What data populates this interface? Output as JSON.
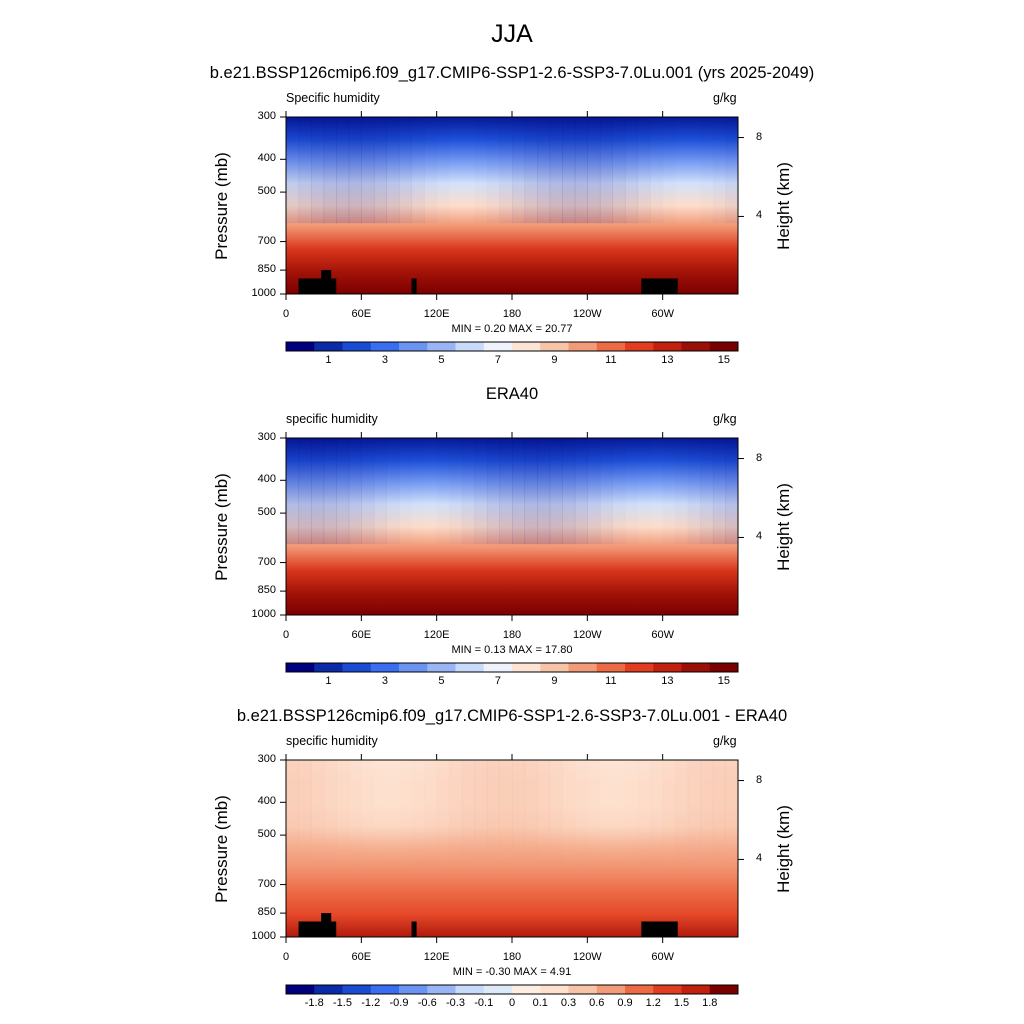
{
  "page": {
    "title": "JJA"
  },
  "chart_data": [
    {
      "type": "heatmap",
      "title": "b.e21.BSSP126cmip6.f09_g17.CMIP6-SSP1-2.6-SSP3-7.0Lu.001 (yrs 2025-2049)",
      "left_label": "Specific humidity",
      "units": "g/kg",
      "ylabel": "Pressure (mb)",
      "ylabel_right": "Height (km)",
      "x_ticks": [
        "0",
        "60E",
        "120E",
        "180",
        "120W",
        "60W"
      ],
      "x_range": [
        0,
        360
      ],
      "y_ticks": [
        "300",
        "400",
        "500",
        "700",
        "850",
        "1000"
      ],
      "y_range": [
        1000,
        300
      ],
      "y_scale": "log",
      "height_ticks": [
        "8",
        "4"
      ],
      "stats": "MIN =   0.20  MAX =  20.77",
      "min": 0.2,
      "max": 20.77,
      "colorbar_labels": [
        "1",
        "3",
        "5",
        "7",
        "9",
        "11",
        "13",
        "15"
      ],
      "colorbar_levels": [
        0.5,
        1,
        2,
        3,
        4,
        5,
        6,
        7,
        8,
        9,
        10,
        11,
        12,
        13,
        14,
        15
      ],
      "colorbar_colors": [
        "#00007f",
        "#0a2aa8",
        "#1a4bd4",
        "#3a6ef0",
        "#6a93f2",
        "#9ab5f5",
        "#c8dafa",
        "#eef2fb",
        "#fde5d6",
        "#f8c4a8",
        "#f29b79",
        "#ec6a44",
        "#e13d20",
        "#c2210f",
        "#9b1006",
        "#7a0000"
      ],
      "masked": true
    },
    {
      "type": "heatmap",
      "title": "ERA40",
      "left_label": "specific humidity",
      "units": "g/kg",
      "ylabel": "Pressure (mb)",
      "ylabel_right": "Height (km)",
      "x_ticks": [
        "0",
        "60E",
        "120E",
        "180",
        "120W",
        "60W"
      ],
      "x_range": [
        0,
        360
      ],
      "y_ticks": [
        "300",
        "400",
        "500",
        "700",
        "850",
        "1000"
      ],
      "y_range": [
        1000,
        300
      ],
      "y_scale": "log",
      "height_ticks": [
        "8",
        "4"
      ],
      "stats": "MIN =   0.13  MAX =  17.80",
      "min": 0.13,
      "max": 17.8,
      "colorbar_labels": [
        "1",
        "3",
        "5",
        "7",
        "9",
        "11",
        "13",
        "15"
      ],
      "colorbar_levels": [
        0.5,
        1,
        2,
        3,
        4,
        5,
        6,
        7,
        8,
        9,
        10,
        11,
        12,
        13,
        14,
        15
      ],
      "colorbar_colors": [
        "#00007f",
        "#0a2aa8",
        "#1a4bd4",
        "#3a6ef0",
        "#6a93f2",
        "#9ab5f5",
        "#c8dafa",
        "#eef2fb",
        "#fde5d6",
        "#f8c4a8",
        "#f29b79",
        "#ec6a44",
        "#e13d20",
        "#c2210f",
        "#9b1006",
        "#7a0000"
      ],
      "masked": false
    },
    {
      "type": "heatmap",
      "title": "b.e21.BSSP126cmip6.f09_g17.CMIP6-SSP1-2.6-SSP3-7.0Lu.001 - ERA40",
      "left_label": "specific humidity",
      "units": "g/kg",
      "ylabel": "Pressure (mb)",
      "ylabel_right": "Height (km)",
      "x_ticks": [
        "0",
        "60E",
        "120E",
        "180",
        "120W",
        "60W"
      ],
      "x_range": [
        0,
        360
      ],
      "y_ticks": [
        "300",
        "400",
        "500",
        "700",
        "850",
        "1000"
      ],
      "y_range": [
        1000,
        300
      ],
      "y_scale": "log",
      "height_ticks": [
        "8",
        "4"
      ],
      "stats": "MIN =  -0.30  MAX =   4.91",
      "min": -0.3,
      "max": 4.91,
      "colorbar_labels": [
        "-1.8",
        "-1.5",
        "-1.2",
        "-0.9",
        "-0.6",
        "-0.3",
        "-0.1",
        "0",
        "0.1",
        "0.3",
        "0.6",
        "0.9",
        "1.2",
        "1.5",
        "1.8"
      ],
      "colorbar_levels": [
        -1.8,
        -1.5,
        -1.2,
        -0.9,
        -0.6,
        -0.3,
        -0.1,
        0,
        0.1,
        0.3,
        0.6,
        0.9,
        1.2,
        1.5,
        1.8
      ],
      "colorbar_colors": [
        "#00007f",
        "#0a2aa8",
        "#1a4bd4",
        "#3a6ef0",
        "#6a93f2",
        "#9ab5f5",
        "#c8dafa",
        "#dde9f7",
        "#fdeee4",
        "#fde0ce",
        "#f8c4a8",
        "#f29b79",
        "#ec6a44",
        "#e13d20",
        "#c2210f",
        "#7a0000"
      ],
      "masked": true
    }
  ]
}
